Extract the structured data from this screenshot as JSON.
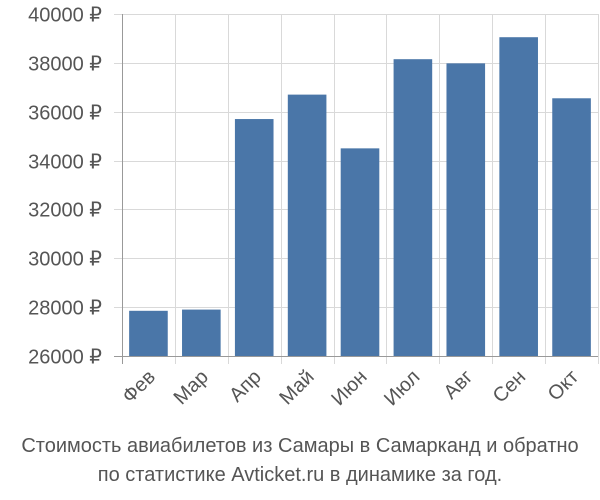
{
  "chart_data": {
    "type": "bar",
    "categories": [
      "Фев",
      "Мар",
      "Апр",
      "Май",
      "Июн",
      "Июл",
      "Авг",
      "Сен",
      "Окт"
    ],
    "values": [
      27850,
      27900,
      35700,
      36700,
      34500,
      38150,
      37980,
      39050,
      36550
    ],
    "ylim": [
      26000,
      40000
    ],
    "yticks": [
      26000,
      28000,
      30000,
      32000,
      34000,
      36000,
      38000,
      40000
    ],
    "ytick_suffix": " ₽",
    "grid": true,
    "bar_color": "#4a76a8",
    "title": "",
    "xlabel": "",
    "ylabel": ""
  },
  "caption": {
    "line1": "Стоимость авиабилетов из Самары в Самарканд и обратно",
    "line2": "по статистике Avticket.ru в динамике за год."
  }
}
